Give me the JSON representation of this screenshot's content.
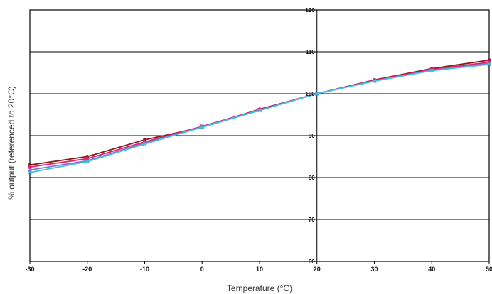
{
  "chart_data": {
    "type": "line",
    "title": "",
    "xlabel": "Temperature (°C)",
    "ylabel": "% output (referenced to 20°C)",
    "x": [
      -30,
      -20,
      -10,
      0,
      10,
      20,
      30,
      40,
      50
    ],
    "xlim": [
      -30,
      50
    ],
    "ylim": [
      60,
      120
    ],
    "xticks": [
      "-30",
      "-20",
      "-10",
      "0",
      "10",
      "20",
      "30",
      "40",
      "50"
    ],
    "yticks": [
      "60",
      "70",
      "80",
      "90",
      "100",
      "110",
      "120"
    ],
    "grid": true,
    "legend": "none",
    "series": [
      {
        "color": "#8b1a1a",
        "marker": "circle",
        "values": [
          83.0,
          85.0,
          89.0,
          92.0,
          96.3,
          100.0,
          103.3,
          106.0,
          108.0
        ]
      },
      {
        "color": "#e0206a",
        "marker": "square",
        "values": [
          82.5,
          84.5,
          88.5,
          92.2,
          96.2,
          100.0,
          103.2,
          105.8,
          107.5
        ]
      },
      {
        "color": "#8a6fd8",
        "marker": "triangle",
        "values": [
          81.8,
          84.0,
          88.2,
          92.1,
          96.1,
          100.0,
          103.1,
          105.6,
          107.2
        ]
      },
      {
        "color": "#3fc3d8",
        "marker": "x",
        "values": [
          81.2,
          83.8,
          88.0,
          92.0,
          96.0,
          100.0,
          103.0,
          105.5,
          107.0
        ]
      }
    ]
  }
}
